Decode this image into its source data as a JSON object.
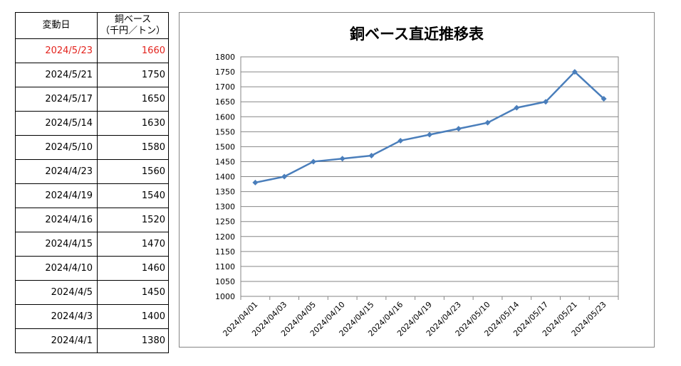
{
  "table": {
    "header": {
      "date": "変動日",
      "price_line1": "銅ベース",
      "price_line2": "（千円／トン）"
    },
    "rows": [
      {
        "date": "2024/5/23",
        "price": "1660"
      },
      {
        "date": "2024/5/21",
        "price": "1750"
      },
      {
        "date": "2024/5/17",
        "price": "1650"
      },
      {
        "date": "2024/5/14",
        "price": "1630"
      },
      {
        "date": "2024/5/10",
        "price": "1580"
      },
      {
        "date": "2024/4/23",
        "price": "1560"
      },
      {
        "date": "2024/4/19",
        "price": "1540"
      },
      {
        "date": "2024/4/16",
        "price": "1520"
      },
      {
        "date": "2024/4/15",
        "price": "1470"
      },
      {
        "date": "2024/4/10",
        "price": "1460"
      },
      {
        "date": "2024/4/5",
        "price": "1450"
      },
      {
        "date": "2024/4/3",
        "price": "1400"
      },
      {
        "date": "2024/4/1",
        "price": "1380"
      }
    ],
    "highlight_color": "#e3231d"
  },
  "chart_data": {
    "type": "line",
    "title": "銅ベース直近推移表",
    "xlabel": "",
    "ylabel": "",
    "categories": [
      "2024/04/01",
      "2024/04/03",
      "2024/04/05",
      "2024/04/10",
      "2024/04/15",
      "2024/04/16",
      "2024/04/19",
      "2024/04/23",
      "2024/05/10",
      "2024/05/14",
      "2024/05/17",
      "2024/05/21",
      "2024/05/23"
    ],
    "series": [
      {
        "values": [
          1380,
          1400,
          1450,
          1460,
          1470,
          1520,
          1540,
          1560,
          1580,
          1630,
          1650,
          1750,
          1660
        ],
        "color": "#4a7ebb"
      }
    ],
    "ylim": [
      1000,
      1800
    ],
    "yticks": [
      1000,
      1050,
      1100,
      1150,
      1200,
      1250,
      1300,
      1350,
      1400,
      1450,
      1500,
      1550,
      1600,
      1650,
      1700,
      1750,
      1800
    ],
    "grid": true,
    "legend": "none",
    "marker": "diamond"
  }
}
